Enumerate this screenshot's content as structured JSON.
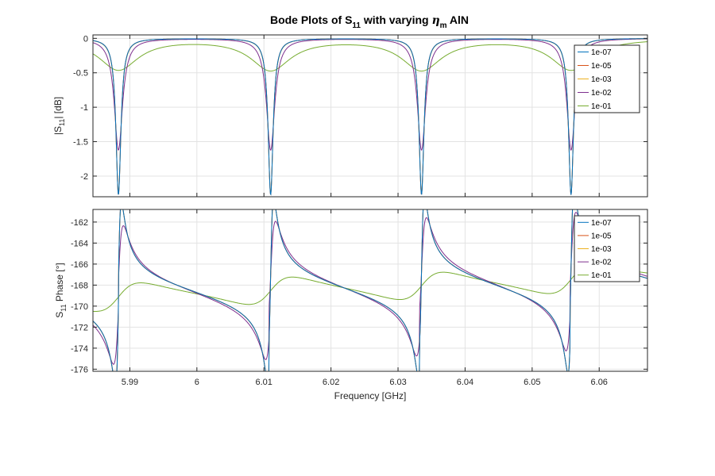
{
  "figure": {
    "title_main": "Bode Plots of S",
    "title_sub": "11",
    "title_mid": " with varying ",
    "title_eta": "η",
    "title_eta_sub": "m",
    "title_end": " AlN"
  },
  "colors": {
    "axis": "#262626",
    "grid": "#e3e3e3",
    "series": [
      "#0072bd",
      "#d95319",
      "#edb120",
      "#7e2f8e",
      "#77ac30"
    ]
  },
  "chart_data": [
    {
      "type": "line",
      "panel": "magnitude",
      "ylabel_pre": "|S",
      "ylabel_sub": "11",
      "ylabel_post": "| [dB]",
      "xlabel": "",
      "xlim": [
        5.9845,
        6.0672
      ],
      "ylim": [
        -2.3,
        0.05
      ],
      "x_ticks": [
        5.99,
        6.0,
        6.01,
        6.02,
        6.03,
        6.04,
        6.05,
        6.06
      ],
      "x_tick_labels": [
        "5.99",
        "6",
        "6.01",
        "6.02",
        "6.03",
        "6.04",
        "6.05",
        "6.06"
      ],
      "y_ticks": [
        0,
        -0.5,
        -1,
        -1.5,
        -2
      ],
      "y_tick_labels": [
        "0",
        "-0.5",
        "-1",
        "-1.5",
        "-2"
      ],
      "grid": true,
      "legend_position": "top-right",
      "resonances_GHz": [
        5.9883,
        6.011,
        6.0335,
        6.0558
      ],
      "series": [
        {
          "name": "1e-07",
          "dip_dB": -2.27,
          "halfwidth_GHz": 0.00045
        },
        {
          "name": "1e-05",
          "dip_dB": -2.27,
          "halfwidth_GHz": 0.00045
        },
        {
          "name": "1e-03",
          "dip_dB": -2.25,
          "halfwidth_GHz": 0.00046
        },
        {
          "name": "1e-02",
          "dip_dB": -1.62,
          "halfwidth_GHz": 0.00075
        },
        {
          "name": "1e-01",
          "dip_dB": -0.45,
          "halfwidth_GHz": 0.0036
        }
      ]
    },
    {
      "type": "line",
      "panel": "phase",
      "ylabel_pre": "S",
      "ylabel_sub": "11",
      "ylabel_post": " Phase [°]",
      "xlabel": "Frequency [GHz]",
      "xlim": [
        5.9845,
        6.0672
      ],
      "ylim": [
        -176.2,
        -160.8
      ],
      "x_ticks": [
        5.99,
        6.0,
        6.01,
        6.02,
        6.03,
        6.04,
        6.05,
        6.06
      ],
      "x_tick_labels": [
        "5.99",
        "6",
        "6.01",
        "6.02",
        "6.03",
        "6.04",
        "6.05",
        "6.06"
      ],
      "y_ticks": [
        -162,
        -164,
        -166,
        -168,
        -170,
        -172,
        -174,
        -176
      ],
      "y_tick_labels": [
        "-162",
        "-164",
        "-166",
        "-168",
        "-170",
        "-172",
        "-174",
        "-176"
      ],
      "grid": true,
      "legend_position": "top-right",
      "resonances_GHz": [
        5.9883,
        6.011,
        6.0335,
        6.0558
      ],
      "series": [
        {
          "name": "1e-07",
          "min_deg": -175.8,
          "max_deg": -161.1
        },
        {
          "name": "1e-05",
          "min_deg": -175.8,
          "max_deg": -161.1
        },
        {
          "name": "1e-03",
          "min_deg": -175.7,
          "max_deg": -161.2
        },
        {
          "name": "1e-02",
          "min_deg": -173.6,
          "max_deg": -163.0
        },
        {
          "name": "1e-01",
          "min_deg": -169.5,
          "max_deg": -166.6
        }
      ]
    }
  ]
}
